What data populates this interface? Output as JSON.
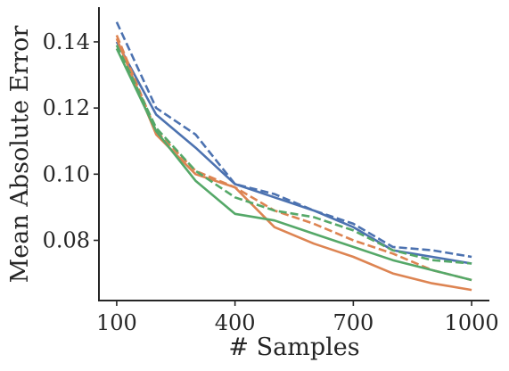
{
  "chart_data": {
    "type": "line",
    "title": "",
    "xlabel": "# Samples",
    "ylabel": "Mean Absolute Error",
    "x": [
      100,
      200,
      300,
      400,
      500,
      600,
      700,
      800,
      900,
      1000
    ],
    "xticks": [
      100,
      400,
      700,
      1000
    ],
    "xtick_labels": [
      "100",
      "400",
      "700",
      "1000"
    ],
    "yticks": [
      0.08,
      0.1,
      0.12,
      0.14
    ],
    "ytick_labels": [
      "0.08",
      "0.10",
      "0.12",
      "0.14"
    ],
    "xlim": [
      55,
      1045
    ],
    "ylim": [
      0.0618,
      0.1505
    ],
    "grid": false,
    "legend": false,
    "series": [
      {
        "color": "#4c72b0",
        "linestyle": "solid",
        "values": [
          0.14,
          0.118,
          0.108,
          0.097,
          0.093,
          0.089,
          0.084,
          0.077,
          0.075,
          0.073
        ]
      },
      {
        "color": "#4c72b0",
        "linestyle": "dashed",
        "values": [
          0.146,
          0.12,
          0.112,
          0.097,
          0.094,
          0.089,
          0.085,
          0.078,
          0.077,
          0.075
        ]
      },
      {
        "color": "#dd8452",
        "linestyle": "solid",
        "values": [
          0.141,
          0.112,
          0.1,
          0.096,
          0.084,
          0.079,
          0.075,
          0.07,
          0.067,
          0.065
        ]
      },
      {
        "color": "#dd8452",
        "linestyle": "dashed",
        "values": [
          0.142,
          0.113,
          0.101,
          0.096,
          0.089,
          0.085,
          0.08,
          0.076,
          0.071,
          0.068
        ]
      },
      {
        "color": "#55a868",
        "linestyle": "solid",
        "values": [
          0.138,
          0.113,
          0.098,
          0.088,
          0.086,
          0.082,
          0.078,
          0.074,
          0.071,
          0.068
        ]
      },
      {
        "color": "#55a868",
        "linestyle": "dashed",
        "values": [
          0.139,
          0.114,
          0.101,
          0.093,
          0.089,
          0.087,
          0.083,
          0.077,
          0.074,
          0.073
        ]
      }
    ]
  }
}
